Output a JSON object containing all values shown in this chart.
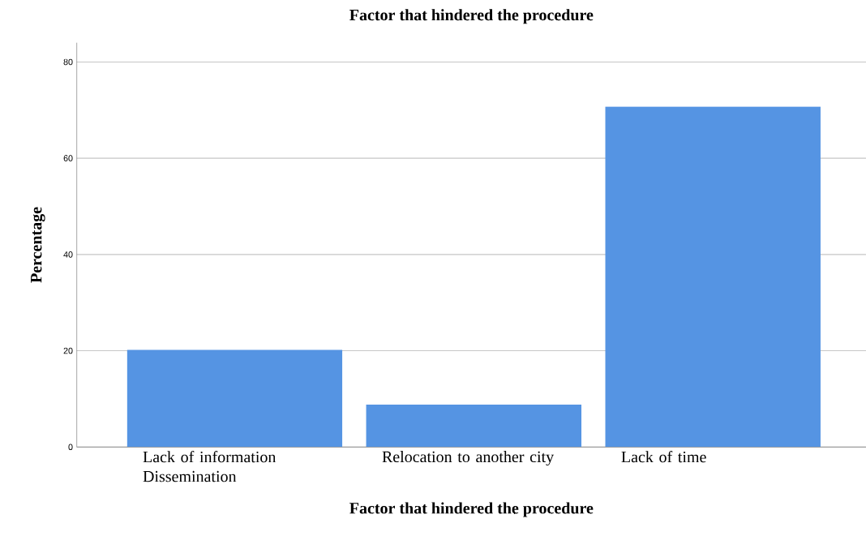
{
  "chart_data": {
    "type": "bar",
    "title": "Factor that hindered the procedure",
    "xlabel": "Factor that hindered the procedure",
    "ylabel": "Percentage",
    "categories": [
      "Lack of information Dissemination",
      "Relocation to another city",
      "Lack of time"
    ],
    "values": [
      20.2,
      8.8,
      70.7
    ],
    "color": "#5594e3",
    "ylim": [
      0,
      84
    ],
    "yticks": [
      0,
      20,
      40,
      60,
      80
    ],
    "grid": "y"
  }
}
